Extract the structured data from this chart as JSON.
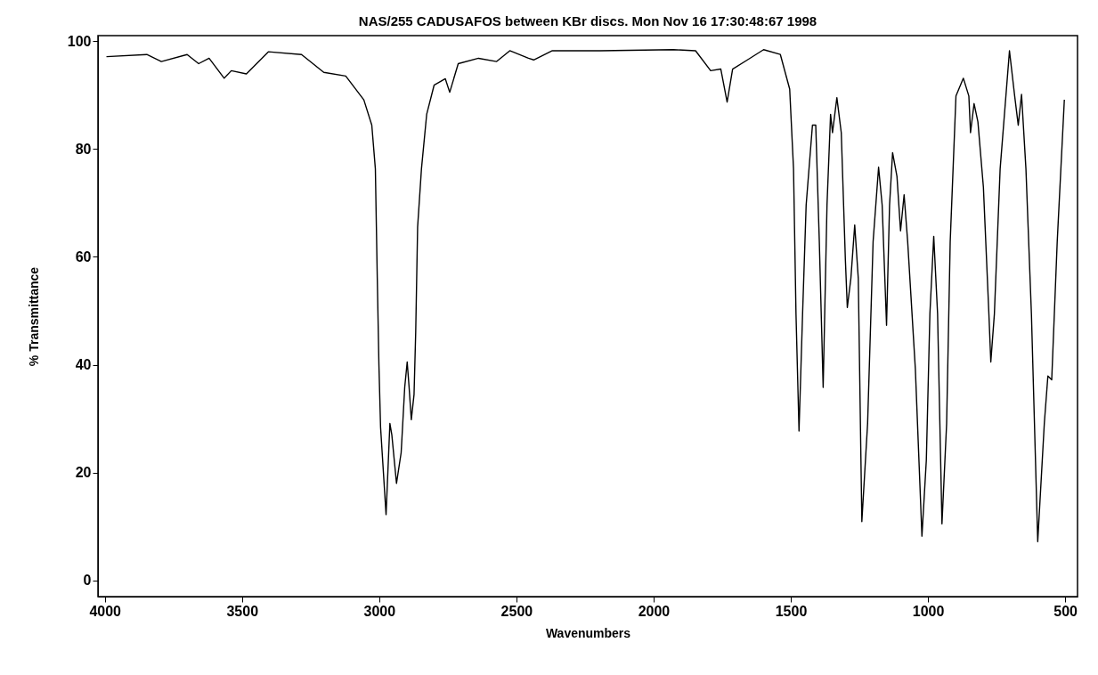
{
  "chart_data": {
    "type": "line",
    "title": "NAS/255 CADUSAFOS between KBr discs.  Mon Nov 16 17:30:48:67 1998",
    "xlabel": "Wavenumbers",
    "ylabel": "% Transmittance",
    "xlim": [
      4025,
      455
    ],
    "ylim": [
      -3,
      101
    ],
    "xticks": [
      4000,
      3500,
      3000,
      2500,
      2000,
      1500,
      1000,
      500
    ],
    "yticks": [
      0,
      20,
      40,
      60,
      80,
      100
    ],
    "grid": false,
    "marker": "none",
    "line_style": "solid",
    "series": [
      {
        "color": "#000000",
        "x": [
          3994,
          3847,
          3794,
          3700,
          3658,
          3620,
          3565,
          3539,
          3484,
          3404,
          3283,
          3202,
          3122,
          3056,
          3027,
          3014,
          3007,
          3001,
          2995,
          2975,
          2961,
          2954,
          2937,
          2920,
          2907,
          2898,
          2891,
          2883,
          2873,
          2867,
          2860,
          2846,
          2827,
          2800,
          2759,
          2743,
          2712,
          2638,
          2572,
          2524,
          2456,
          2437,
          2369,
          2195,
          1928,
          1847,
          1792,
          1755,
          1732,
          1712,
          1658,
          1599,
          1538,
          1504,
          1490,
          1481,
          1470,
          1457,
          1444,
          1421,
          1409,
          1396,
          1382,
          1368,
          1355,
          1348,
          1332,
          1316,
          1301,
          1294,
          1281,
          1267,
          1254,
          1241,
          1220,
          1200,
          1180,
          1167,
          1151,
          1140,
          1129,
          1113,
          1100,
          1087,
          1074,
          1046,
          1022,
          1006,
          993,
          979,
          965,
          949,
          932,
          919,
          898,
          871,
          851,
          845,
          832,
          818,
          798,
          778,
          771,
          758,
          737,
          703,
          684,
          671,
          659,
          643,
          623,
          600,
          576,
          563,
          549,
          529,
          503
        ],
        "values": [
          97.1,
          97.5,
          96.2,
          97.5,
          95.8,
          96.8,
          93.1,
          94.5,
          93.9,
          98.0,
          97.5,
          94.2,
          93.5,
          89.1,
          84.4,
          76.3,
          56.0,
          39.9,
          28.4,
          12.2,
          29.1,
          27.0,
          18.0,
          23.7,
          35.8,
          40.5,
          35.8,
          29.8,
          34.5,
          46.0,
          65.5,
          76.3,
          86.4,
          91.8,
          93.0,
          90.5,
          95.8,
          96.8,
          96.2,
          98.2,
          96.8,
          96.5,
          98.2,
          98.2,
          98.4,
          98.2,
          94.5,
          94.8,
          88.7,
          94.8,
          96.5,
          98.4,
          97.5,
          91.1,
          76.3,
          49.4,
          27.7,
          49.4,
          69.6,
          84.4,
          84.4,
          62.8,
          35.8,
          69.6,
          86.4,
          83.0,
          89.5,
          83.0,
          59.4,
          50.6,
          56.0,
          65.9,
          56.0,
          10.9,
          29.1,
          62.8,
          76.6,
          69.6,
          47.3,
          69.6,
          79.3,
          74.9,
          64.8,
          71.5,
          62.8,
          39.2,
          8.2,
          22.3,
          49.4,
          63.8,
          49.4,
          10.5,
          29.1,
          62.8,
          89.8,
          93.1,
          89.8,
          83.0,
          88.4,
          85.0,
          72.9,
          49.4,
          40.5,
          49.4,
          76.3,
          98.2,
          89.8,
          84.4,
          90.1,
          76.3,
          49.4,
          7.2,
          29.1,
          37.9,
          37.2,
          62.8,
          89.1
        ]
      }
    ]
  }
}
